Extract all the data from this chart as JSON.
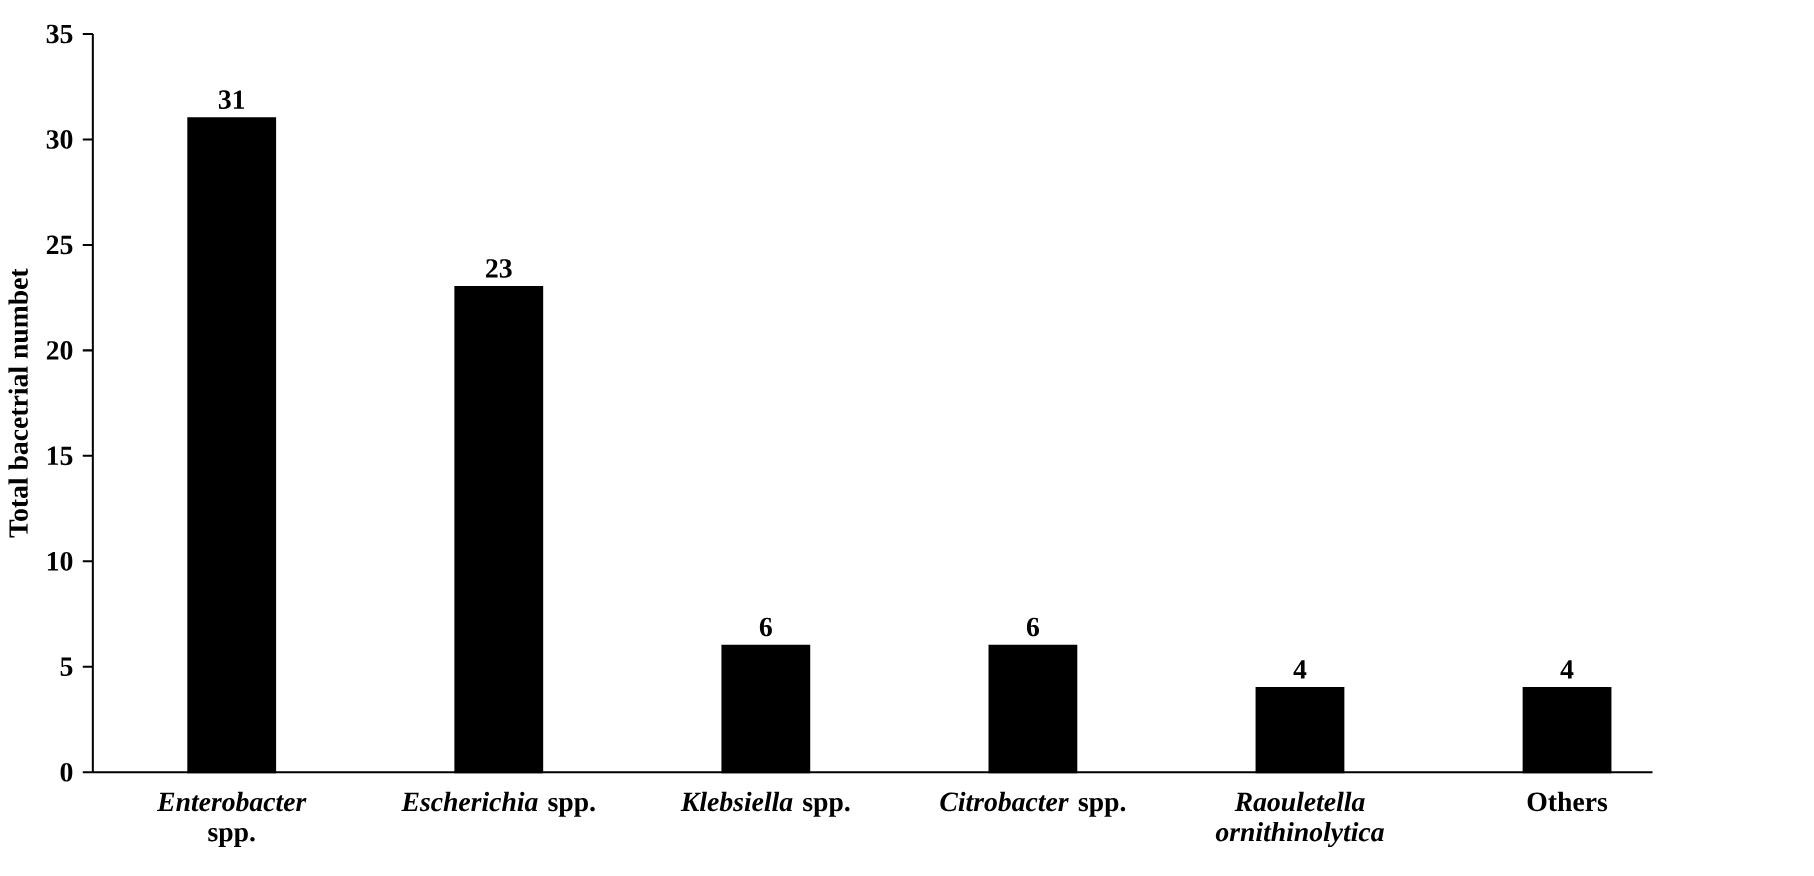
{
  "chart_data": {
    "type": "bar",
    "ylabel": "Total bacetrial numbet",
    "categories": [
      "*Enterobacter* spp.",
      "*Escherichia* spp.",
      "*Klebsiella* spp.",
      "*Citrobacter* spp.",
      "*Raouletella ornithinolytica*",
      "Others"
    ],
    "values": [
      31,
      23,
      6,
      6,
      4,
      4
    ],
    "color": "#000000",
    "ylim": [
      0,
      35
    ],
    "yticks": [
      0,
      5,
      10,
      15,
      20,
      25,
      30,
      35
    ],
    "data_labels": true,
    "grid": false
  }
}
